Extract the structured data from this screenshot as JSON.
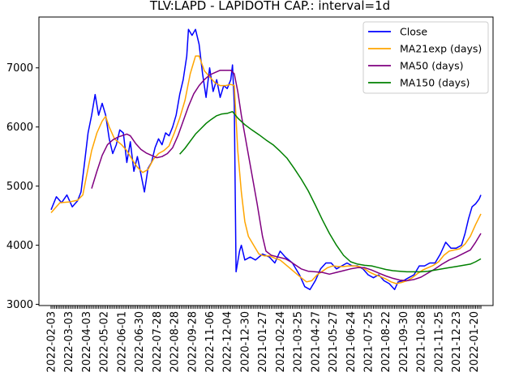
{
  "chart_data": {
    "type": "line",
    "title": "TLV:LAPD - LAPIDOTH   CAP.: interval=1d",
    "xlabel": "",
    "ylabel": "",
    "ylim": [
      2980,
      7860
    ],
    "yticks": [
      3000,
      4000,
      5000,
      6000,
      7000
    ],
    "ytick_labels": [
      "3000",
      "4000",
      "5000",
      "6000",
      "7000"
    ],
    "x_count": 245,
    "xticks": [
      0,
      10,
      20,
      30,
      40,
      50,
      60,
      70,
      80,
      90,
      100,
      110,
      120,
      130,
      140,
      150,
      160,
      170,
      180,
      190,
      200,
      210,
      220,
      230,
      240
    ],
    "xtick_labels": [
      "2022-02-03",
      "2022-03-03",
      "2022-04-03",
      "2022-05-02",
      "2022-06-01",
      "2022-06-30",
      "2022-07-28",
      "2022-08-28",
      "2022-09-28",
      "2022-11-06",
      "2022-12-04",
      "2020-12-30",
      "2021-01-27",
      "2021-02-24",
      "2021-03-25",
      "2021-04-27",
      "2021-05-27",
      "2021-06-24",
      "2021-07-25",
      "2021-08-22",
      "2021-09-30",
      "2021-10-28",
      "2021-11-25",
      "2021-12-23",
      "2022-01-20"
    ],
    "legend_position": "top-right",
    "grid": false,
    "series": [
      {
        "name": "Close",
        "color": "#0000ff",
        "points": [
          [
            0,
            4600
          ],
          [
            3,
            4820
          ],
          [
            6,
            4720
          ],
          [
            9,
            4850
          ],
          [
            12,
            4650
          ],
          [
            15,
            4750
          ],
          [
            17,
            4900
          ],
          [
            19,
            5400
          ],
          [
            21,
            5900
          ],
          [
            23,
            6200
          ],
          [
            25,
            6550
          ],
          [
            27,
            6200
          ],
          [
            29,
            6400
          ],
          [
            31,
            6200
          ],
          [
            33,
            5800
          ],
          [
            35,
            5550
          ],
          [
            37,
            5700
          ],
          [
            39,
            5950
          ],
          [
            41,
            5900
          ],
          [
            43,
            5400
          ],
          [
            45,
            5750
          ],
          [
            47,
            5250
          ],
          [
            49,
            5500
          ],
          [
            51,
            5200
          ],
          [
            53,
            4900
          ],
          [
            55,
            5300
          ],
          [
            57,
            5400
          ],
          [
            59,
            5650
          ],
          [
            61,
            5800
          ],
          [
            63,
            5700
          ],
          [
            65,
            5900
          ],
          [
            67,
            5850
          ],
          [
            69,
            6000
          ],
          [
            71,
            6200
          ],
          [
            73,
            6550
          ],
          [
            75,
            6800
          ],
          [
            77,
            7200
          ],
          [
            78,
            7650
          ],
          [
            80,
            7550
          ],
          [
            82,
            7650
          ],
          [
            84,
            7400
          ],
          [
            86,
            6900
          ],
          [
            88,
            6500
          ],
          [
            90,
            7000
          ],
          [
            92,
            6600
          ],
          [
            94,
            6800
          ],
          [
            96,
            6500
          ],
          [
            98,
            6700
          ],
          [
            100,
            6650
          ],
          [
            102,
            6800
          ],
          [
            103,
            7050
          ],
          [
            104,
            6400
          ],
          [
            105,
            3550
          ],
          [
            107,
            3900
          ],
          [
            108,
            4000
          ],
          [
            110,
            3750
          ],
          [
            113,
            3800
          ],
          [
            116,
            3750
          ],
          [
            120,
            3850
          ],
          [
            124,
            3800
          ],
          [
            127,
            3700
          ],
          [
            130,
            3900
          ],
          [
            133,
            3800
          ],
          [
            137,
            3700
          ],
          [
            141,
            3500
          ],
          [
            144,
            3300
          ],
          [
            147,
            3250
          ],
          [
            150,
            3400
          ],
          [
            153,
            3600
          ],
          [
            156,
            3700
          ],
          [
            159,
            3700
          ],
          [
            162,
            3600
          ],
          [
            165,
            3650
          ],
          [
            168,
            3700
          ],
          [
            171,
            3650
          ],
          [
            174,
            3650
          ],
          [
            177,
            3600
          ],
          [
            180,
            3500
          ],
          [
            183,
            3450
          ],
          [
            186,
            3500
          ],
          [
            189,
            3400
          ],
          [
            192,
            3350
          ],
          [
            195,
            3250
          ],
          [
            197,
            3380
          ],
          [
            200,
            3400
          ],
          [
            203,
            3450
          ],
          [
            206,
            3500
          ],
          [
            209,
            3650
          ],
          [
            212,
            3650
          ],
          [
            215,
            3700
          ],
          [
            218,
            3700
          ],
          [
            221,
            3850
          ],
          [
            224,
            4050
          ],
          [
            227,
            3950
          ],
          [
            230,
            3950
          ],
          [
            233,
            4000
          ],
          [
            235,
            4200
          ],
          [
            237,
            4450
          ],
          [
            239,
            4650
          ],
          [
            241,
            4700
          ],
          [
            243,
            4780
          ],
          [
            244,
            4850
          ]
        ]
      },
      {
        "name": "MA21exp (days)",
        "color": "#ffa500",
        "points": [
          [
            0,
            4550
          ],
          [
            5,
            4720
          ],
          [
            10,
            4730
          ],
          [
            15,
            4760
          ],
          [
            18,
            4850
          ],
          [
            20,
            5150
          ],
          [
            23,
            5600
          ],
          [
            26,
            5900
          ],
          [
            29,
            6100
          ],
          [
            31,
            6180
          ],
          [
            33,
            6000
          ],
          [
            36,
            5800
          ],
          [
            40,
            5700
          ],
          [
            43,
            5600
          ],
          [
            46,
            5450
          ],
          [
            49,
            5320
          ],
          [
            52,
            5230
          ],
          [
            55,
            5280
          ],
          [
            58,
            5450
          ],
          [
            61,
            5550
          ],
          [
            64,
            5600
          ],
          [
            67,
            5680
          ],
          [
            70,
            5900
          ],
          [
            73,
            6150
          ],
          [
            76,
            6450
          ],
          [
            79,
            6900
          ],
          [
            82,
            7200
          ],
          [
            84,
            7200
          ],
          [
            87,
            6950
          ],
          [
            90,
            6850
          ],
          [
            93,
            6750
          ],
          [
            96,
            6700
          ],
          [
            99,
            6700
          ],
          [
            102,
            6720
          ],
          [
            104,
            6700
          ],
          [
            106,
            5600
          ],
          [
            108,
            4900
          ],
          [
            110,
            4400
          ],
          [
            112,
            4150
          ],
          [
            115,
            4000
          ],
          [
            118,
            3850
          ],
          [
            121,
            3820
          ],
          [
            124,
            3820
          ],
          [
            127,
            3780
          ],
          [
            130,
            3750
          ],
          [
            134,
            3650
          ],
          [
            138,
            3550
          ],
          [
            142,
            3450
          ],
          [
            145,
            3380
          ],
          [
            148,
            3400
          ],
          [
            151,
            3500
          ],
          [
            154,
            3560
          ],
          [
            157,
            3620
          ],
          [
            160,
            3650
          ],
          [
            163,
            3640
          ],
          [
            166,
            3640
          ],
          [
            169,
            3650
          ],
          [
            172,
            3650
          ],
          [
            175,
            3640
          ],
          [
            178,
            3600
          ],
          [
            181,
            3540
          ],
          [
            184,
            3500
          ],
          [
            187,
            3470
          ],
          [
            190,
            3430
          ],
          [
            193,
            3380
          ],
          [
            196,
            3350
          ],
          [
            199,
            3370
          ],
          [
            202,
            3400
          ],
          [
            205,
            3450
          ],
          [
            208,
            3520
          ],
          [
            211,
            3580
          ],
          [
            214,
            3620
          ],
          [
            217,
            3660
          ],
          [
            220,
            3720
          ],
          [
            223,
            3830
          ],
          [
            226,
            3900
          ],
          [
            229,
            3920
          ],
          [
            232,
            3940
          ],
          [
            235,
            4020
          ],
          [
            238,
            4150
          ],
          [
            241,
            4350
          ],
          [
            244,
            4530
          ]
        ]
      },
      {
        "name": "MA50 (days)",
        "color": "#800080",
        "points": [
          [
            23,
            4960
          ],
          [
            26,
            5250
          ],
          [
            29,
            5520
          ],
          [
            32,
            5700
          ],
          [
            35,
            5780
          ],
          [
            38,
            5830
          ],
          [
            41,
            5860
          ],
          [
            43,
            5880
          ],
          [
            45,
            5850
          ],
          [
            48,
            5720
          ],
          [
            51,
            5620
          ],
          [
            54,
            5560
          ],
          [
            57,
            5520
          ],
          [
            60,
            5480
          ],
          [
            63,
            5500
          ],
          [
            66,
            5550
          ],
          [
            69,
            5650
          ],
          [
            72,
            5850
          ],
          [
            75,
            6100
          ],
          [
            78,
            6350
          ],
          [
            81,
            6560
          ],
          [
            84,
            6700
          ],
          [
            87,
            6800
          ],
          [
            90,
            6880
          ],
          [
            93,
            6920
          ],
          [
            96,
            6960
          ],
          [
            99,
            6960
          ],
          [
            102,
            6960
          ],
          [
            104,
            6900
          ],
          [
            106,
            6600
          ],
          [
            108,
            6200
          ],
          [
            111,
            5700
          ],
          [
            114,
            5200
          ],
          [
            117,
            4700
          ],
          [
            120,
            4150
          ],
          [
            122,
            3900
          ],
          [
            125,
            3830
          ],
          [
            129,
            3800
          ],
          [
            133,
            3770
          ],
          [
            136,
            3720
          ],
          [
            139,
            3660
          ],
          [
            142,
            3600
          ],
          [
            146,
            3560
          ],
          [
            150,
            3550
          ],
          [
            154,
            3540
          ],
          [
            158,
            3510
          ],
          [
            162,
            3540
          ],
          [
            166,
            3570
          ],
          [
            170,
            3600
          ],
          [
            174,
            3620
          ],
          [
            178,
            3620
          ],
          [
            182,
            3580
          ],
          [
            186,
            3530
          ],
          [
            190,
            3480
          ],
          [
            194,
            3440
          ],
          [
            198,
            3410
          ],
          [
            202,
            3400
          ],
          [
            206,
            3420
          ],
          [
            210,
            3460
          ],
          [
            214,
            3530
          ],
          [
            218,
            3600
          ],
          [
            222,
            3680
          ],
          [
            226,
            3750
          ],
          [
            230,
            3800
          ],
          [
            234,
            3860
          ],
          [
            238,
            3920
          ],
          [
            241,
            4050
          ],
          [
            244,
            4200
          ]
        ]
      },
      {
        "name": "MA150 (days)",
        "color": "#008000",
        "points": [
          [
            73,
            5540
          ],
          [
            76,
            5640
          ],
          [
            79,
            5760
          ],
          [
            82,
            5880
          ],
          [
            85,
            5970
          ],
          [
            88,
            6060
          ],
          [
            91,
            6130
          ],
          [
            94,
            6190
          ],
          [
            97,
            6220
          ],
          [
            100,
            6230
          ],
          [
            103,
            6260
          ],
          [
            106,
            6150
          ],
          [
            110,
            6040
          ],
          [
            114,
            5950
          ],
          [
            118,
            5870
          ],
          [
            122,
            5780
          ],
          [
            126,
            5700
          ],
          [
            130,
            5590
          ],
          [
            134,
            5470
          ],
          [
            138,
            5300
          ],
          [
            142,
            5120
          ],
          [
            146,
            4920
          ],
          [
            150,
            4680
          ],
          [
            154,
            4430
          ],
          [
            158,
            4200
          ],
          [
            162,
            4000
          ],
          [
            166,
            3830
          ],
          [
            170,
            3720
          ],
          [
            174,
            3680
          ],
          [
            178,
            3660
          ],
          [
            182,
            3650
          ],
          [
            186,
            3620
          ],
          [
            190,
            3590
          ],
          [
            194,
            3570
          ],
          [
            198,
            3560
          ],
          [
            202,
            3550
          ],
          [
            206,
            3550
          ],
          [
            210,
            3550
          ],
          [
            214,
            3560
          ],
          [
            218,
            3580
          ],
          [
            222,
            3600
          ],
          [
            226,
            3620
          ],
          [
            230,
            3640
          ],
          [
            234,
            3660
          ],
          [
            238,
            3680
          ],
          [
            241,
            3720
          ],
          [
            244,
            3770
          ]
        ]
      }
    ]
  }
}
